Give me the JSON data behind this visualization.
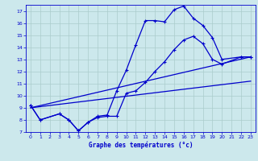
{
  "bg_color": "#cce8ec",
  "grid_color": "#aacccc",
  "line_color": "#0000cc",
  "title": "Graphe des températures (°c)",
  "xlim": [
    -0.5,
    23.5
  ],
  "ylim": [
    7,
    17.5
  ],
  "yticks": [
    7,
    8,
    9,
    10,
    11,
    12,
    13,
    14,
    15,
    16,
    17
  ],
  "xticks": [
    0,
    1,
    2,
    3,
    4,
    5,
    6,
    7,
    8,
    9,
    10,
    11,
    12,
    13,
    14,
    15,
    16,
    17,
    18,
    19,
    20,
    21,
    22,
    23
  ],
  "line1_x": [
    0,
    1,
    3,
    4,
    5,
    6,
    7,
    8,
    9,
    10,
    11,
    12,
    13,
    14,
    15,
    16,
    17,
    18,
    19,
    20,
    22,
    23
  ],
  "line1_y": [
    9.2,
    8.0,
    8.5,
    8.0,
    7.1,
    7.8,
    8.3,
    8.4,
    10.4,
    12.1,
    14.2,
    16.2,
    16.2,
    16.1,
    17.1,
    17.4,
    16.4,
    15.8,
    14.8,
    13.0,
    13.2,
    13.2
  ],
  "line2_x": [
    0,
    1,
    3,
    4,
    5,
    6,
    7,
    8,
    9,
    10,
    11,
    12,
    13,
    14,
    15,
    16,
    17,
    18,
    19,
    20,
    22,
    23
  ],
  "line2_y": [
    9.2,
    8.0,
    8.5,
    8.0,
    7.1,
    7.8,
    8.2,
    8.3,
    8.3,
    10.2,
    10.4,
    11.1,
    12.0,
    12.8,
    13.8,
    14.6,
    14.9,
    14.3,
    13.0,
    12.6,
    13.2,
    13.2
  ],
  "line3_x": [
    0,
    23
  ],
  "line3_y": [
    9.0,
    13.2
  ],
  "line4_x": [
    0,
    23
  ],
  "line4_y": [
    9.0,
    11.2
  ]
}
